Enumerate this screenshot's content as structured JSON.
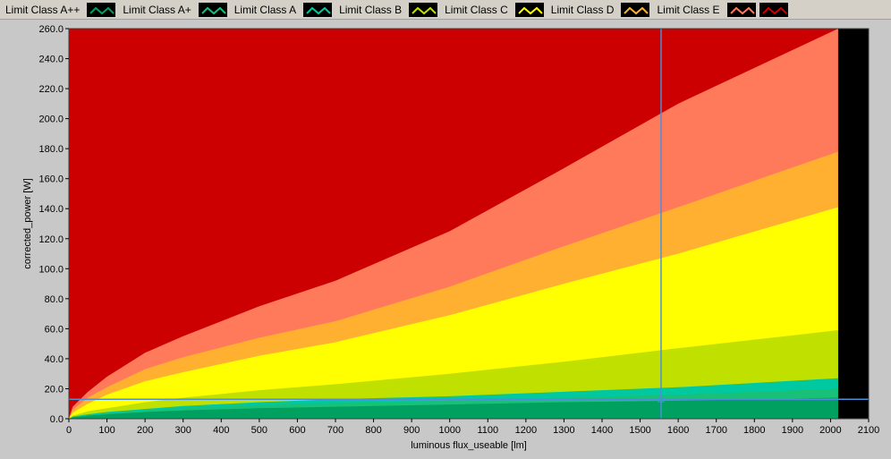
{
  "legend": [
    {
      "label": "Limit Class A++",
      "color": "#00a060",
      "icon": "wave-line-icon"
    },
    {
      "label": "Limit Class A+",
      "color": "#18c078",
      "icon": "wave-line-icon"
    },
    {
      "label": "Limit Class A",
      "color": "#00c8a0",
      "icon": "wave-line-icon"
    },
    {
      "label": "Limit Class B",
      "color": "#c0e000",
      "icon": "wave-line-icon"
    },
    {
      "label": "Limit Class C",
      "color": "#ffff00",
      "icon": "wave-line-icon"
    },
    {
      "label": "Limit Class D",
      "color": "#ffb030",
      "icon": "wave-line-icon"
    },
    {
      "label": "Limit Class E",
      "color": "#ff7a5a",
      "icon": "wave-line-icon"
    },
    {
      "label": "",
      "color": "#cc0000",
      "icon": "wave-line-icon"
    }
  ],
  "chart_data": {
    "type": "area",
    "xlabel": "luminous flux_useable [lm]",
    "ylabel": "corrected_power [W]",
    "xlim": [
      0,
      2100
    ],
    "ylim": [
      0,
      260
    ],
    "x_ticks": [
      "0",
      "100",
      "200",
      "300",
      "400",
      "500",
      "600",
      "700",
      "800",
      "900",
      "1000",
      "1100",
      "1200",
      "1300",
      "1400",
      "1500",
      "1600",
      "1700",
      "1800",
      "1900",
      "2000",
      "2100"
    ],
    "y_ticks": [
      "0.0",
      "20.0",
      "40.0",
      "60.0",
      "80.0",
      "100.0",
      "120.0",
      "140.0",
      "160.0",
      "180.0",
      "200.0",
      "220.0",
      "240.0",
      "260.0"
    ],
    "background_color": "#cc0000",
    "end_region": {
      "x_from": 2020,
      "x_to": 2100,
      "color": "#000000"
    },
    "series": [
      {
        "color": "#ff7a5a",
        "x": [
          0,
          10,
          50,
          100,
          200,
          300,
          500,
          700,
          1000,
          1300,
          1600,
          2020
        ],
        "y": [
          0,
          8,
          18,
          28,
          44,
          55,
          75,
          92,
          125,
          167,
          210,
          260
        ]
      },
      {
        "color": "#ffb030",
        "x": [
          0,
          10,
          50,
          100,
          200,
          300,
          500,
          700,
          1000,
          1300,
          1600,
          2020
        ],
        "y": [
          0,
          6,
          14,
          21,
          33,
          41,
          54,
          65,
          88,
          115,
          141,
          178
        ]
      },
      {
        "color": "#ffff00",
        "x": [
          0,
          10,
          50,
          100,
          200,
          300,
          500,
          700,
          1000,
          1300,
          1600,
          2020
        ],
        "y": [
          0,
          4,
          10,
          16,
          25,
          31,
          42,
          51,
          69,
          90,
          110,
          141
        ]
      },
      {
        "color": "#c0e000",
        "x": [
          0,
          10,
          50,
          100,
          200,
          300,
          500,
          700,
          1000,
          1300,
          1600,
          2020
        ],
        "y": [
          0,
          2,
          5,
          7,
          11,
          14,
          19,
          23,
          30,
          38,
          47,
          59
        ]
      },
      {
        "color": "#00c8a0",
        "x": [
          0,
          10,
          50,
          100,
          200,
          300,
          500,
          700,
          1000,
          1300,
          1600,
          2020
        ],
        "y": [
          0,
          1.5,
          3,
          4.5,
          6.5,
          8.5,
          11,
          13,
          15,
          18,
          21,
          27
        ]
      },
      {
        "color": "#18c078",
        "x": [
          0,
          10,
          50,
          100,
          200,
          300,
          500,
          700,
          1000,
          1300,
          1600,
          2020
        ],
        "y": [
          0,
          1.0,
          2.5,
          3.5,
          5.5,
          7,
          9,
          10.5,
          12,
          14,
          16,
          20
        ]
      },
      {
        "color": "#00a060",
        "x": [
          0,
          10,
          50,
          100,
          200,
          300,
          500,
          700,
          1000,
          1300,
          1600,
          2020
        ],
        "y": [
          0,
          0.8,
          2,
          3,
          4.5,
          5.5,
          7,
          8,
          9.5,
          11,
          12,
          14
        ]
      }
    ],
    "cursor": {
      "x": 1555,
      "y": 13,
      "color": "#4a90d9"
    }
  }
}
